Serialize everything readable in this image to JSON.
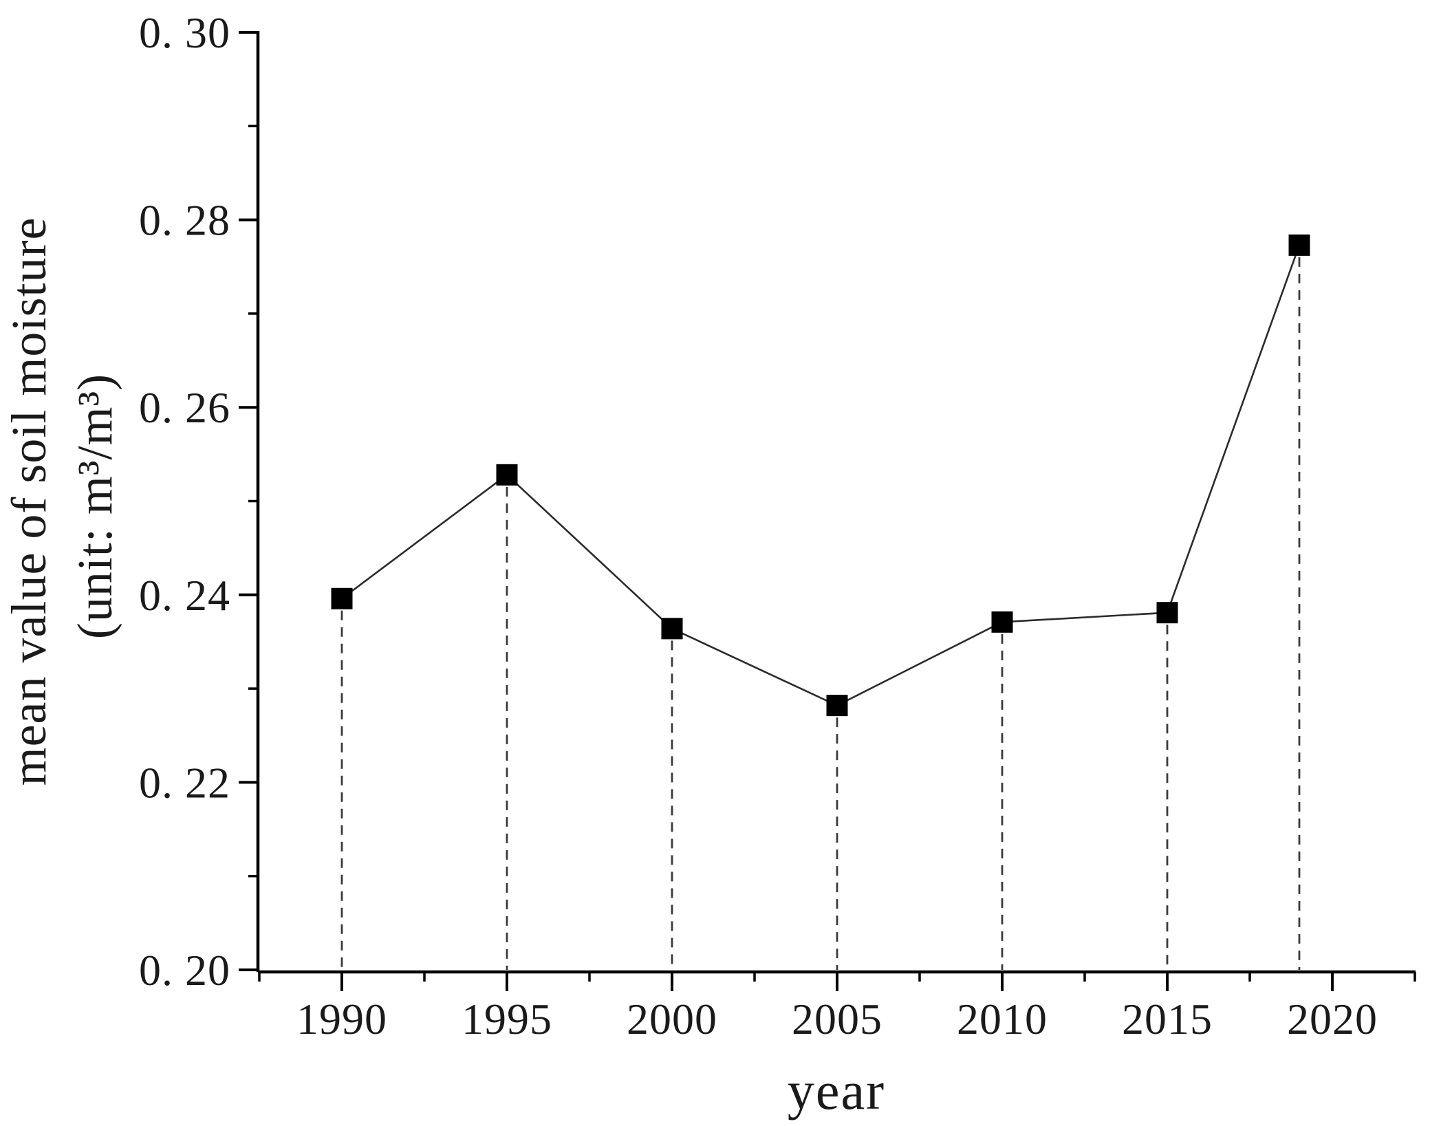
{
  "chart_data": {
    "type": "line",
    "title": "",
    "xlabel": "year",
    "ylabel_line1": "mean value of soil moisture",
    "ylabel_line2": "(unit: m³/m³)",
    "series": [
      {
        "name": "mean value of soil moisture",
        "x": [
          1990,
          1995,
          2000,
          2005,
          2010,
          2015,
          2019
        ],
        "values": [
          0.2396,
          0.2528,
          0.2364,
          0.2282,
          0.2371,
          0.2381,
          0.2773
        ]
      }
    ],
    "xlim": [
      1987.5,
      2022.5
    ],
    "ylim": [
      0.2,
      0.3
    ],
    "x_ticks": [
      {
        "label": "1990",
        "value": 1990
      },
      {
        "label": "1995",
        "value": 1995
      },
      {
        "label": "2000",
        "value": 2000
      },
      {
        "label": "2005",
        "value": 2005
      },
      {
        "label": "2010",
        "value": 2010
      },
      {
        "label": "2015",
        "value": 2015
      },
      {
        "label": "2020",
        "value": 2020
      }
    ],
    "y_ticks": [
      {
        "label": "0. 30",
        "value": 0.3
      },
      {
        "label": "0. 28",
        "value": 0.28
      },
      {
        "label": "0. 26",
        "value": 0.26
      },
      {
        "label": "0. 24",
        "value": 0.24
      },
      {
        "label": "0. 22",
        "value": 0.22
      },
      {
        "label": "0. 20",
        "value": 0.2
      }
    ],
    "x_minor_ticks": [
      1987.5,
      1992.5,
      1997.5,
      2002.5,
      2007.5,
      2012.5,
      2017.5,
      2022.5
    ],
    "y_minor_ticks": [
      0.29,
      0.27,
      0.25,
      0.23,
      0.21
    ],
    "marker": "square",
    "marker_color": "#000000",
    "line_color": "#2b2b2b",
    "axis_color": "#000000",
    "drop_line_style": "dashed",
    "grid": false,
    "legend": false,
    "background": "#ffffff"
  }
}
